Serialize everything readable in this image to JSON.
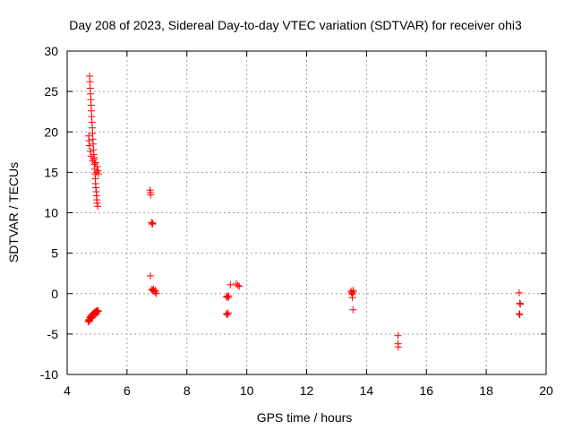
{
  "chart_data": {
    "type": "scatter",
    "title": "Day 208 of 2023, Sidereal Day-to-day VTEC variation (SDTVAR) for receiver ohi3",
    "xlabel": "GPS time / hours",
    "ylabel": "SDTVAR / TECUs",
    "xlim": [
      4,
      20
    ],
    "ylim": [
      -10,
      30
    ],
    "xticks": [
      "4",
      "6",
      "8",
      "10",
      "12",
      "14",
      "16",
      "18",
      "20"
    ],
    "yticks": [
      "-10",
      "-5",
      "0",
      "5",
      "10",
      "15",
      "20",
      "25",
      "30"
    ],
    "grid": true,
    "marker": "+",
    "series": [
      {
        "name": "SDTVAR",
        "color": "#ff0000",
        "points": [
          [
            4.75,
            26.9
          ],
          [
            4.76,
            26.2
          ],
          [
            4.77,
            25.4
          ],
          [
            4.78,
            24.7
          ],
          [
            4.79,
            24.0
          ],
          [
            4.8,
            23.3
          ],
          [
            4.81,
            22.6
          ],
          [
            4.82,
            21.9
          ],
          [
            4.83,
            21.2
          ],
          [
            4.84,
            20.5
          ],
          [
            4.85,
            19.8
          ],
          [
            4.86,
            19.1
          ],
          [
            4.87,
            18.5
          ],
          [
            4.88,
            17.8
          ],
          [
            4.89,
            17.2
          ],
          [
            4.9,
            16.6
          ],
          [
            4.91,
            16.0
          ],
          [
            4.92,
            15.4
          ],
          [
            4.93,
            14.8
          ],
          [
            4.94,
            14.2
          ],
          [
            4.95,
            13.6
          ],
          [
            4.96,
            13.1
          ],
          [
            4.97,
            12.6
          ],
          [
            4.98,
            12.1
          ],
          [
            4.99,
            11.6
          ],
          [
            5.0,
            11.2
          ],
          [
            5.02,
            10.8
          ],
          [
            4.72,
            19.5
          ],
          [
            4.73,
            18.9
          ],
          [
            4.74,
            18.3
          ],
          [
            4.78,
            17.6
          ],
          [
            4.8,
            17.0
          ],
          [
            4.85,
            16.4
          ],
          [
            4.9,
            16.8
          ],
          [
            4.95,
            16.2
          ],
          [
            5.0,
            15.7
          ],
          [
            5.03,
            15.2
          ],
          [
            5.05,
            14.8
          ],
          [
            4.98,
            15.0
          ],
          [
            4.7,
            -3.5
          ],
          [
            4.72,
            -3.3
          ],
          [
            4.74,
            -3.2
          ],
          [
            4.76,
            -3.0
          ],
          [
            4.78,
            -2.9
          ],
          [
            4.8,
            -2.8
          ],
          [
            4.82,
            -2.7
          ],
          [
            4.84,
            -2.6
          ],
          [
            4.86,
            -2.5
          ],
          [
            4.88,
            -2.5
          ],
          [
            4.9,
            -2.4
          ],
          [
            4.92,
            -2.3
          ],
          [
            4.94,
            -2.3
          ],
          [
            4.96,
            -2.2
          ],
          [
            4.98,
            -2.2
          ],
          [
            5.0,
            -2.1
          ],
          [
            5.02,
            -2.1
          ],
          [
            5.04,
            -2.2
          ],
          [
            4.75,
            -3.4
          ],
          [
            4.8,
            -3.1
          ],
          [
            4.85,
            -2.9
          ],
          [
            4.9,
            -2.7
          ],
          [
            4.95,
            -2.6
          ],
          [
            5.0,
            -2.4
          ],
          [
            6.77,
            12.8
          ],
          [
            6.78,
            12.5
          ],
          [
            6.79,
            12.2
          ],
          [
            6.82,
            8.8
          ],
          [
            6.84,
            8.6
          ],
          [
            6.86,
            8.7
          ],
          [
            6.78,
            2.2
          ],
          [
            6.82,
            0.5
          ],
          [
            6.86,
            0.4
          ],
          [
            6.9,
            0.3
          ],
          [
            6.94,
            0.2
          ],
          [
            6.98,
            0.0
          ],
          [
            6.88,
            0.6
          ],
          [
            6.95,
            0.4
          ],
          [
            9.32,
            -0.4
          ],
          [
            9.35,
            -0.3
          ],
          [
            9.38,
            -0.5
          ],
          [
            9.4,
            -0.3
          ],
          [
            9.32,
            -2.5
          ],
          [
            9.35,
            -2.6
          ],
          [
            9.38,
            -2.4
          ],
          [
            9.45,
            1.1
          ],
          [
            9.65,
            1.2
          ],
          [
            9.7,
            1.0
          ],
          [
            9.75,
            0.9
          ],
          [
            13.48,
            0.3
          ],
          [
            13.5,
            0.1
          ],
          [
            13.52,
            -0.1
          ],
          [
            13.55,
            0.4
          ],
          [
            13.53,
            -0.5
          ],
          [
            13.56,
            0.2
          ],
          [
            13.55,
            -2.0
          ],
          [
            15.05,
            -5.2
          ],
          [
            15.05,
            -6.2
          ],
          [
            15.06,
            -6.6
          ],
          [
            19.1,
            0.1
          ],
          [
            19.12,
            -1.2
          ],
          [
            19.14,
            -1.3
          ],
          [
            19.1,
            -2.5
          ],
          [
            19.12,
            -2.6
          ]
        ]
      }
    ]
  }
}
